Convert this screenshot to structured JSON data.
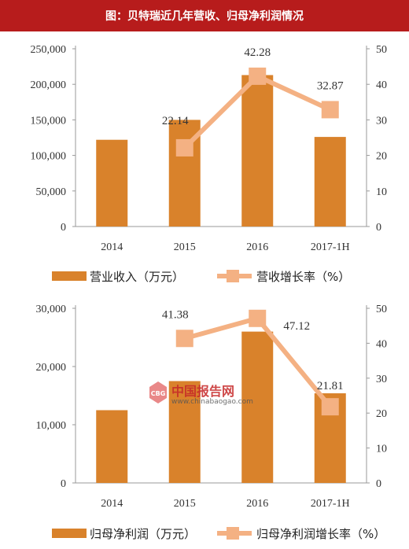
{
  "header": {
    "title": "图：贝特瑞近几年营收、归母净利润情况"
  },
  "watermark": {
    "name": "中国报告网",
    "url": "www.chinabaogao.com"
  },
  "chart_data": [
    {
      "type": "bar",
      "categories": [
        "2014",
        "2015",
        "2016",
        "2017-1H"
      ],
      "series": [
        {
          "name": "营业收入（万元）",
          "kind": "bar",
          "axis": "left",
          "values": [
            122000,
            150000,
            213000,
            126000
          ],
          "color": "#d9822b"
        },
        {
          "name": "营收增长率（%）",
          "kind": "line",
          "axis": "right",
          "values": [
            null,
            22.14,
            42.28,
            32.87
          ],
          "labels": [
            "",
            "22.14",
            "42.28",
            "32.87"
          ],
          "color": "#f4b183"
        }
      ],
      "left_ticks": [
        "0",
        "50,000",
        "100,000",
        "150,000",
        "200,000",
        "250,000"
      ],
      "right_ticks": [
        "0",
        "10",
        "20",
        "30",
        "40",
        "50"
      ],
      "ylim_left": [
        0,
        250000
      ],
      "ylim_right": [
        0,
        50
      ],
      "legend_position": "bottom"
    },
    {
      "type": "bar",
      "categories": [
        "2014",
        "2015",
        "2016",
        "2017-1H"
      ],
      "series": [
        {
          "name": "归母净利润（万元）",
          "kind": "bar",
          "axis": "left",
          "values": [
            12500,
            17500,
            26000,
            15400
          ],
          "color": "#d9822b"
        },
        {
          "name": "归母净利润增长率（%）",
          "kind": "line",
          "axis": "right",
          "values": [
            null,
            41.38,
            47.12,
            21.81
          ],
          "labels": [
            "",
            "41.38",
            "47.12",
            "21.81"
          ],
          "color": "#f4b183"
        }
      ],
      "left_ticks": [
        "0",
        "10,000",
        "20,000",
        "30,000"
      ],
      "right_ticks": [
        "0",
        "10",
        "20",
        "30",
        "40",
        "50"
      ],
      "ylim_left": [
        0,
        30000
      ],
      "ylim_right": [
        0,
        50
      ],
      "legend_position": "bottom"
    }
  ]
}
